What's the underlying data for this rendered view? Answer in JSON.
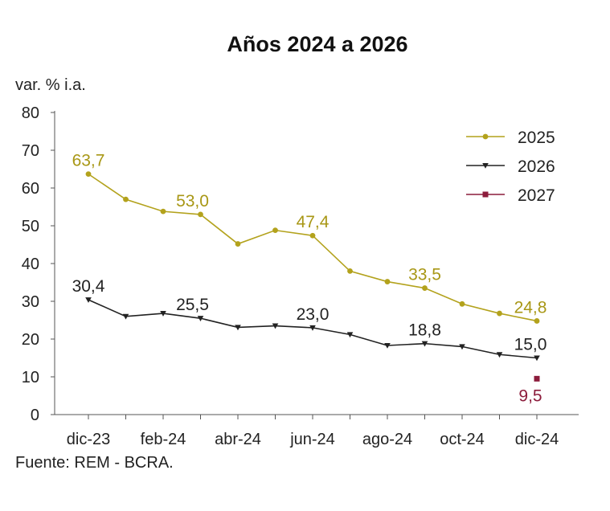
{
  "chart_data": {
    "type": "line",
    "title": "Años 2024 a 2026",
    "ylabel": "var. % i.a.",
    "source": "Fuente: REM - BCRA.",
    "ylim": [
      0,
      80
    ],
    "yticks": [
      0,
      10,
      20,
      30,
      40,
      50,
      60,
      70,
      80
    ],
    "x": [
      "dic-23",
      "ene-24",
      "feb-24",
      "mar-24",
      "abr-24",
      "may-24",
      "jun-24",
      "jul-24",
      "ago-24",
      "sep-24",
      "oct-24",
      "nov-24",
      "dic-24"
    ],
    "xtick_labels": [
      "dic-23",
      "feb-24",
      "abr-24",
      "jun-24",
      "ago-24",
      "oct-24",
      "dic-24"
    ],
    "legend_position": "top-right",
    "series": [
      {
        "name": "2025",
        "color": "#b3a21c",
        "marker": "circle",
        "values": [
          63.7,
          57.0,
          53.8,
          53.0,
          45.2,
          48.8,
          47.4,
          38.0,
          35.2,
          33.5,
          29.3,
          26.8,
          24.8
        ],
        "labels": [
          {
            "index": 0,
            "text": "63,7"
          },
          {
            "index": 3,
            "text": "53,0"
          },
          {
            "index": 6,
            "text": "47,4"
          },
          {
            "index": 9,
            "text": "33,5"
          },
          {
            "index": 12,
            "text": "24,8"
          }
        ]
      },
      {
        "name": "2026",
        "color": "#222222",
        "marker": "triangle-down",
        "values": [
          30.4,
          26.0,
          26.8,
          25.5,
          23.1,
          23.5,
          23.0,
          21.2,
          18.3,
          18.8,
          18.0,
          15.9,
          15.0
        ],
        "labels": [
          {
            "index": 0,
            "text": "30,4"
          },
          {
            "index": 3,
            "text": "25,5"
          },
          {
            "index": 6,
            "text": "23,0"
          },
          {
            "index": 9,
            "text": "18,8"
          },
          {
            "index": 12,
            "text": "15,0"
          }
        ]
      },
      {
        "name": "2027",
        "color": "#8c1c3c",
        "marker": "square",
        "values": [
          null,
          null,
          null,
          null,
          null,
          null,
          null,
          null,
          null,
          null,
          null,
          null,
          9.5
        ],
        "labels": [
          {
            "index": 12,
            "text": "9,5"
          }
        ]
      }
    ]
  }
}
